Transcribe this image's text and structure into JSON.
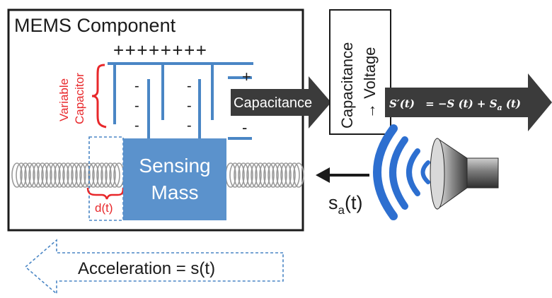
{
  "mems": {
    "title": "MEMS Component",
    "plus_row": "++++++++",
    "right_plus": "+",
    "right_minus": "-",
    "minus_sign": "-",
    "variable_capacitor_line1": "Variable",
    "variable_capacitor_line2": "Capacitor",
    "sensing_mass_line1": "Sensing",
    "sensing_mass_line2": "Mass",
    "displacement_label": "d(t)"
  },
  "converter": {
    "input_label": "Capacitance",
    "block_line1": "Capacitance",
    "block_line2": "→ Voltage"
  },
  "output": {
    "lhs": "S′(t)",
    "rhs_a": "= −S (t) + S",
    "rhs_sub": "a",
    "rhs_b": " (t)"
  },
  "acoustic": {
    "signal_base": "s",
    "signal_sub": "a",
    "signal_tail": "(t)"
  },
  "acceleration": {
    "label": "Acceleration = s(t)"
  },
  "colors": {
    "blue": "#4a86c5",
    "mass": "#5b92cc",
    "red": "#e8282b",
    "dark_arrow": "#3b3b3b",
    "wave_blue": "#2d6fd0"
  }
}
